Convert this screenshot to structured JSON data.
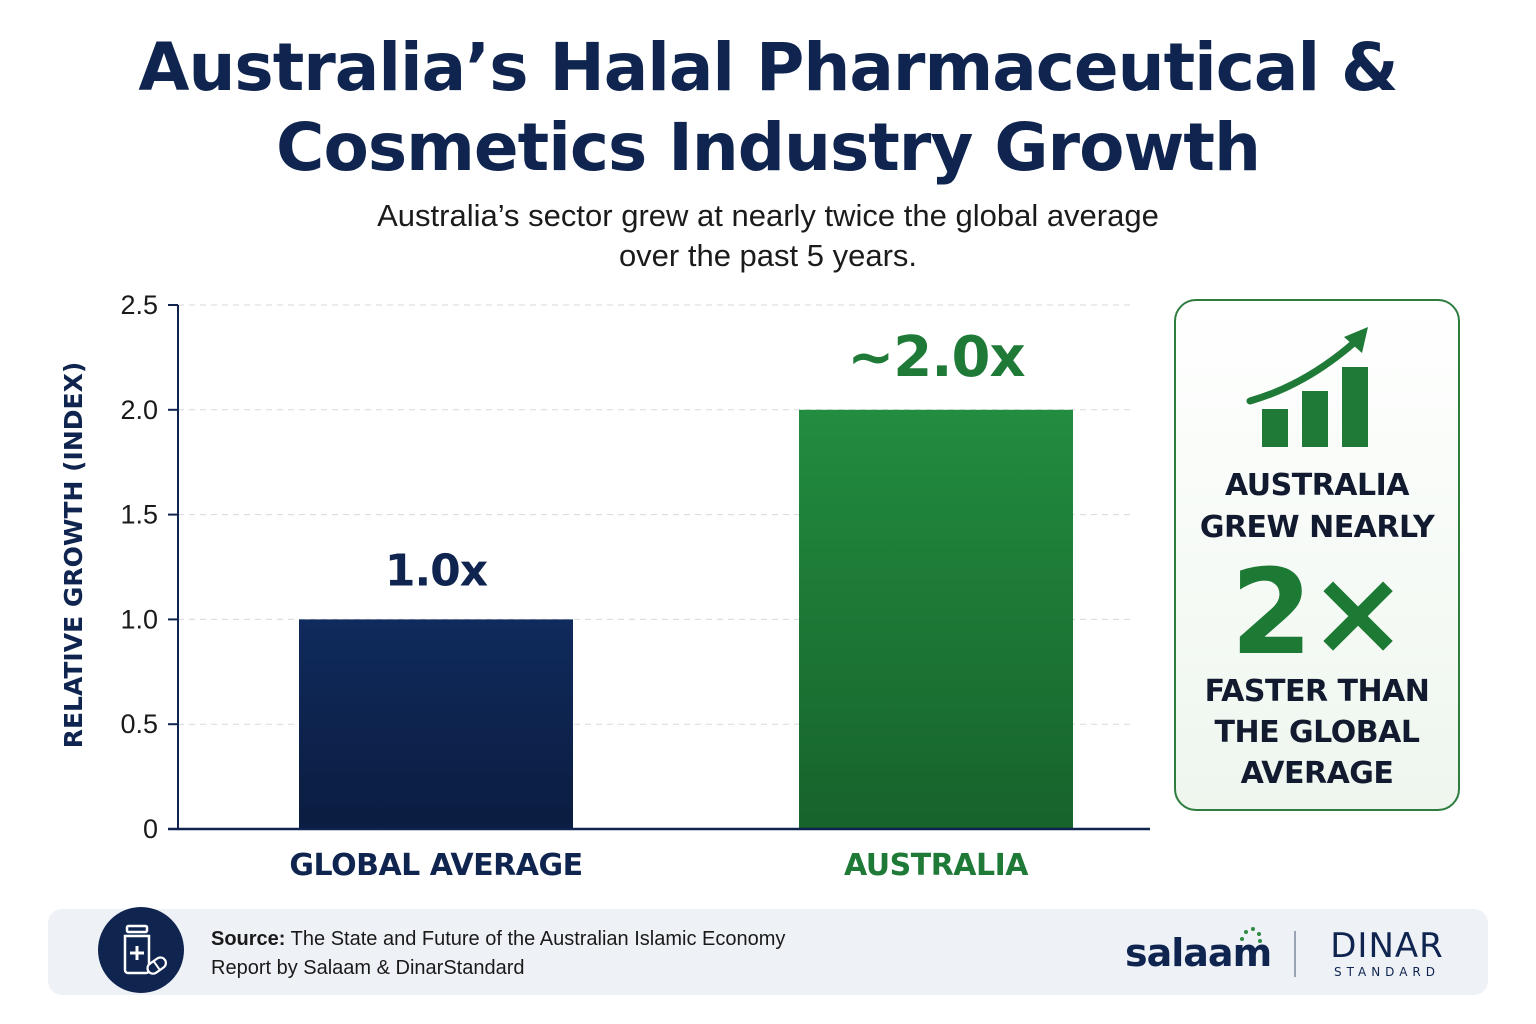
{
  "title_line1": "Australia’s Halal Pharmaceutical &",
  "title_line2": "Cosmetics Industry Growth",
  "subtitle_line1": "Australia’s sector grew at nearly twice the global average",
  "subtitle_line2": "over the past 5 years.",
  "colors": {
    "navy": "#0f2550",
    "green": "#1f7a38",
    "bar_global": "#0f2a5c",
    "bar_australia": "#1e8a3c"
  },
  "chart_data": {
    "type": "bar",
    "categories": [
      "GLOBAL AVERAGE",
      "AUSTRALIA"
    ],
    "values": [
      1.0,
      2.0
    ],
    "data_labels": [
      "1.0x",
      "~2.0x"
    ],
    "ylabel": "RELATIVE GROWTH (INDEX)",
    "ylim": [
      0,
      2.5
    ],
    "yticks": [
      0,
      0.5,
      1.0,
      1.5,
      2.0,
      2.5
    ],
    "ytick_labels": [
      "0",
      "0.5",
      "1.0",
      "1.5",
      "2.0",
      "2.5"
    ],
    "grid": true
  },
  "callout": {
    "icon": "growth-chart-arrow-icon",
    "line1a": "AUSTRALIA",
    "line1b": "GREW NEARLY",
    "big": "2×",
    "line2a": "FASTER THAN",
    "line2b": "THE GLOBAL",
    "line2c": "AVERAGE"
  },
  "footer": {
    "icon": "medicine-bottle-pills-icon",
    "source_label": "Source:",
    "source_text_line1": "The State and Future of the Australian Islamic Economy",
    "source_text_line2": "Report by Salaam & DinarStandard",
    "logo_salaam": "salaam",
    "logo_dinar": "DINAR",
    "logo_standard": "STANDARD"
  }
}
